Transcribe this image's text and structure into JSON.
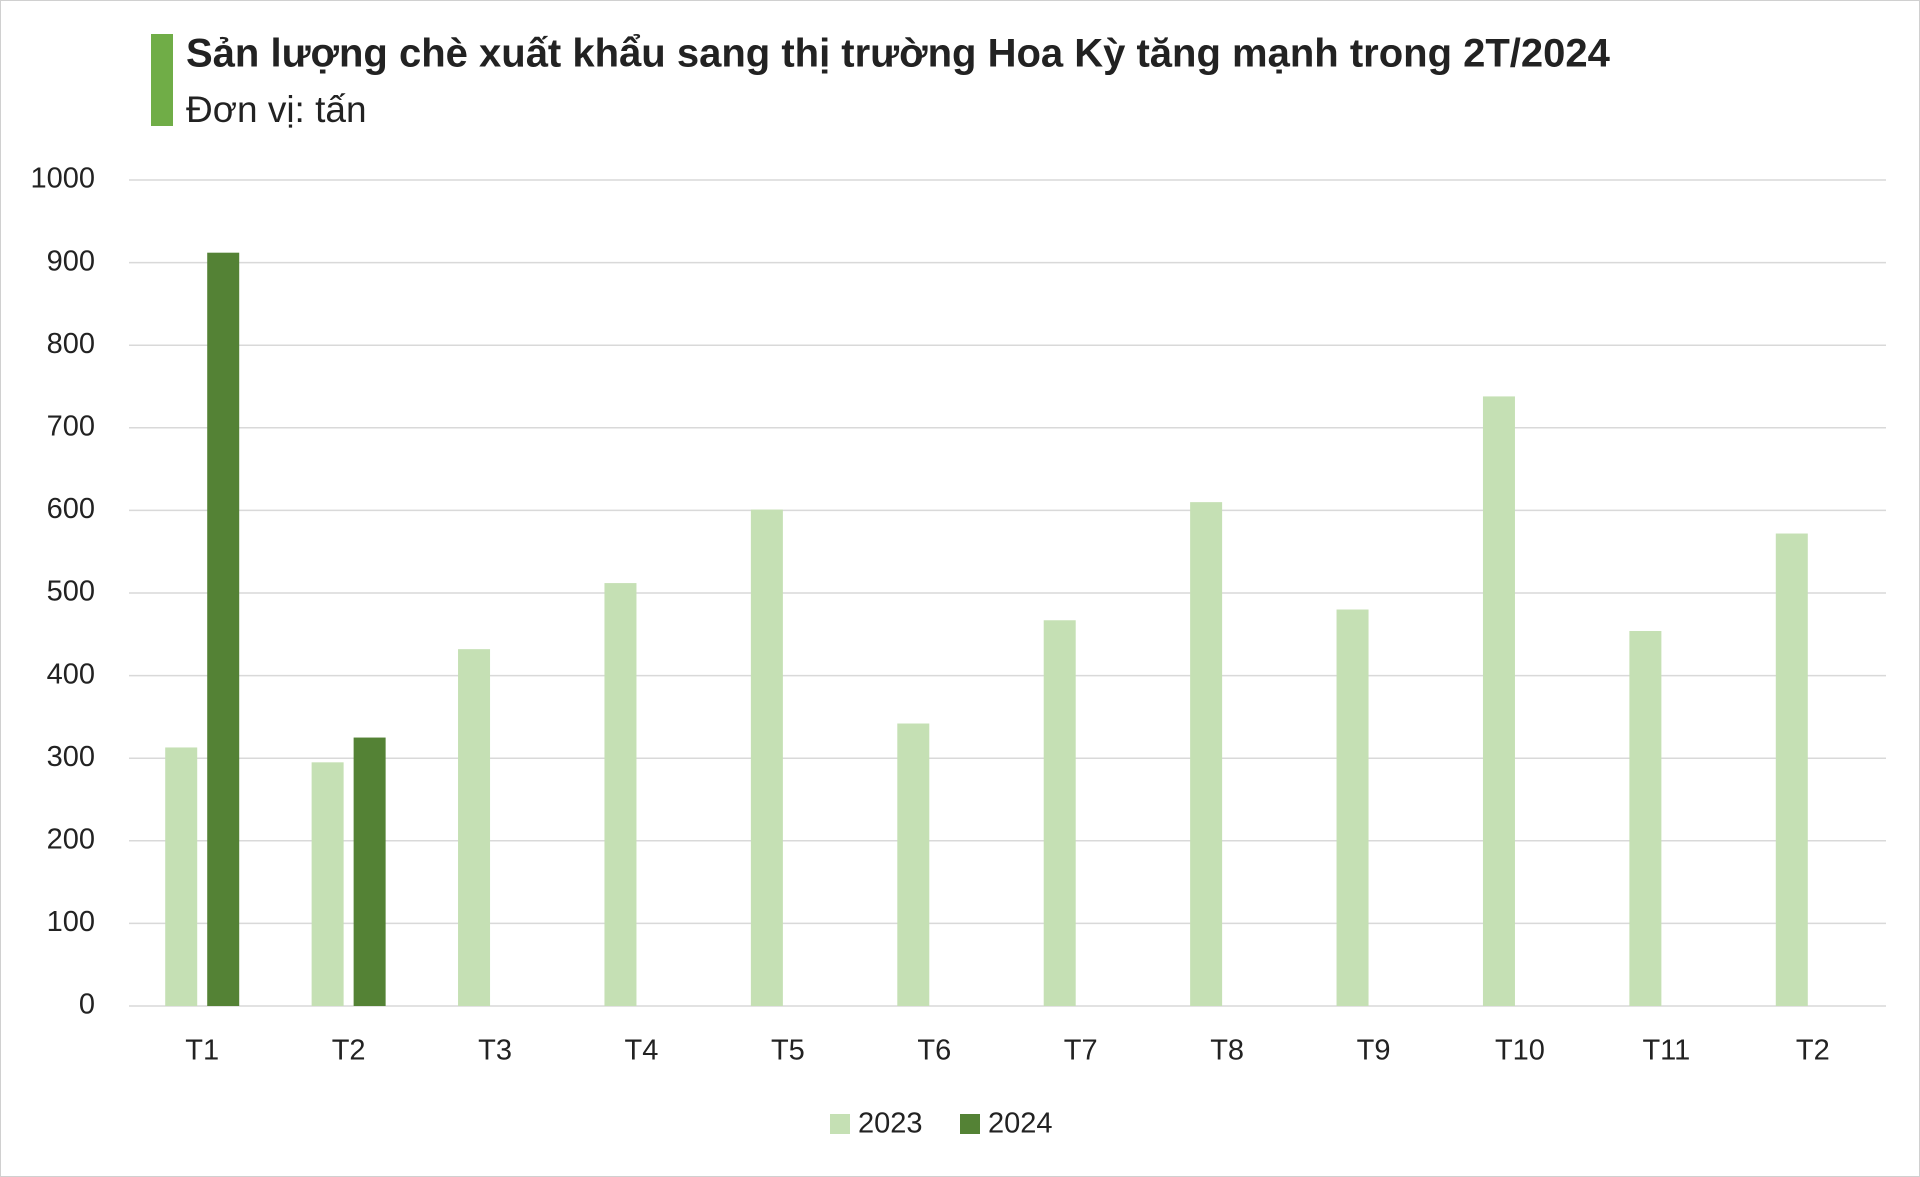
{
  "chart_data": {
    "type": "bar",
    "title": "Sản lượng chè xuất khẩu sang thị trường Hoa Kỳ tăng mạnh trong 2T/2024",
    "subtitle": "Đơn vị: tấn",
    "categories": [
      "T1",
      "T2",
      "T3",
      "T4",
      "T5",
      "T6",
      "T7",
      "T8",
      "T9",
      "T10",
      "T11",
      "T2"
    ],
    "series": [
      {
        "name": "2023",
        "color": "#c5e0b4",
        "values": [
          313,
          295,
          432,
          512,
          601,
          342,
          467,
          610,
          480,
          738,
          454,
          572
        ]
      },
      {
        "name": "2024",
        "color": "#548235",
        "values": [
          912,
          325,
          null,
          null,
          null,
          null,
          null,
          null,
          null,
          null,
          null,
          null
        ]
      }
    ],
    "ylim": [
      0,
      1000
    ],
    "yticks": [
      0,
      100,
      200,
      300,
      400,
      500,
      600,
      700,
      800,
      900,
      1000
    ],
    "grid": true,
    "legend": "bottom"
  }
}
